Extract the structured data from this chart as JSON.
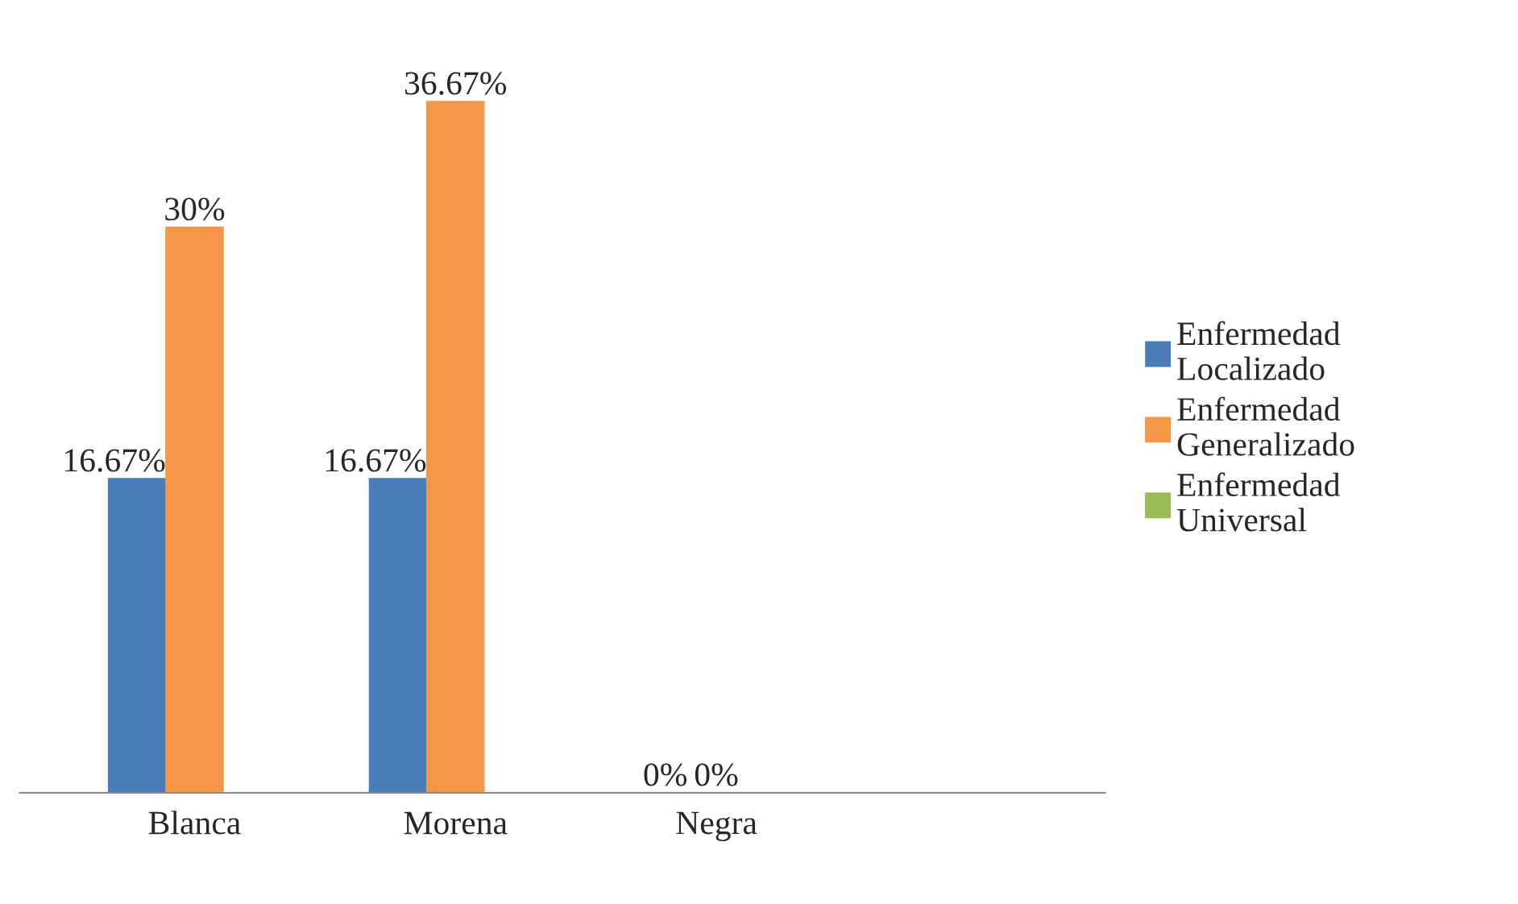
{
  "chart_data": {
    "type": "bar",
    "categories": [
      "Blanca",
      "Morena",
      "Negra"
    ],
    "series": [
      {
        "name": "Enfermedad Localizado",
        "color": "#4a7ebb",
        "values": [
          16.67,
          16.67,
          0
        ],
        "value_labels": [
          "16.67%",
          "16.67%",
          "0%"
        ]
      },
      {
        "name": "Enfermedad Generalizado",
        "color": "#f79646",
        "values": [
          30,
          36.67,
          0
        ],
        "value_labels": [
          "30%",
          "36.67%",
          "0%"
        ]
      },
      {
        "name": "Enfermedad Universal",
        "color": "#9bbb59",
        "values": [
          null,
          null,
          null
        ],
        "value_labels": [
          null,
          null,
          null
        ]
      }
    ],
    "tick_labels": "x",
    "grid": false,
    "legend": "right"
  }
}
